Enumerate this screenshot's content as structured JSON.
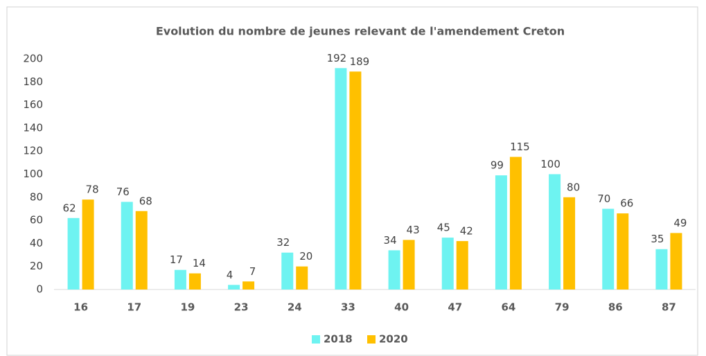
{
  "chart_data": {
    "type": "bar",
    "title": "Evolution du nombre de jeunes relevant de l'amendement Creton",
    "categories": [
      "16",
      "17",
      "19",
      "23",
      "24",
      "33",
      "40",
      "47",
      "64",
      "79",
      "86",
      "87"
    ],
    "series": [
      {
        "name": "2018",
        "color": "#6ef3f1",
        "values": [
          62,
          76,
          17,
          4,
          32,
          192,
          34,
          45,
          99,
          100,
          70,
          35
        ]
      },
      {
        "name": "2020",
        "color": "#ffc000",
        "values": [
          78,
          68,
          14,
          7,
          20,
          189,
          43,
          42,
          115,
          80,
          66,
          49
        ]
      }
    ],
    "ylim": [
      0,
      200
    ],
    "yticks": [
      0,
      20,
      40,
      60,
      80,
      100,
      120,
      140,
      160,
      180,
      200
    ],
    "grid": false,
    "legend": "bottom"
  }
}
